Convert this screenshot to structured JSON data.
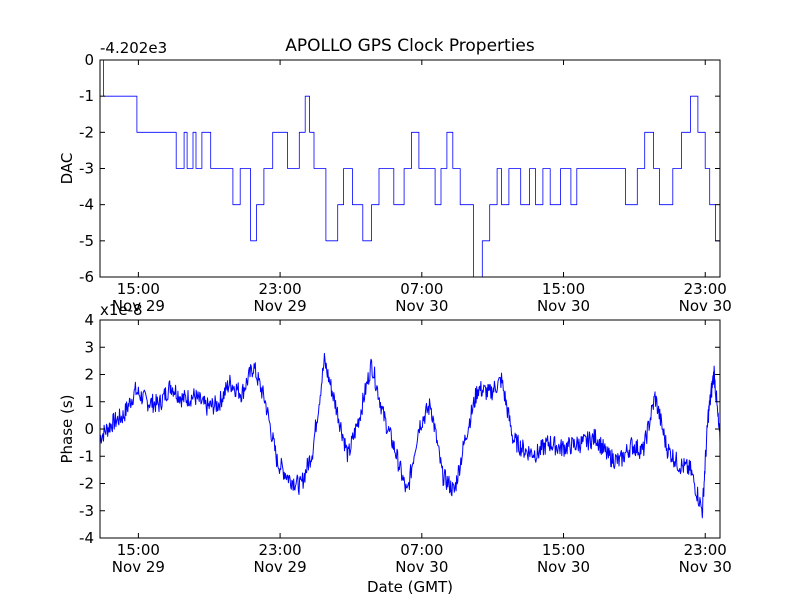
{
  "figure": {
    "title": "APOLLO GPS Clock Properties",
    "xlabel": "Date (GMT)"
  },
  "xticks": [
    {
      "time": "15:00",
      "date": "Nov 29"
    },
    {
      "time": "23:00",
      "date": "Nov 29"
    },
    {
      "time": "07:00",
      "date": "Nov 30"
    },
    {
      "time": "15:00",
      "date": "Nov 30"
    },
    {
      "time": "23:00",
      "date": "Nov 30"
    }
  ],
  "chart_data": [
    {
      "type": "line",
      "name": "dac_panel",
      "ylabel": "DAC",
      "offset_text": "-4.202e3",
      "ylim": [
        -6,
        0
      ],
      "yticks": [
        "0",
        "-1",
        "-2",
        "-3",
        "-4",
        "-5",
        "-6"
      ],
      "xlim": [
        "Nov 29 12:50",
        "Nov 30 23:50"
      ],
      "color": "#0000ff",
      "series": [
        {
          "x": [
            "Nov 29 12:50",
            "Nov 29 13:00",
            "Nov 29 13:02",
            "Nov 29 14:40",
            "Nov 29 14:55",
            "Nov 29 15:05",
            "Nov 29 16:50",
            "Nov 29 17:08",
            "Nov 29 17:35",
            "Nov 29 17:45",
            "Nov 29 18:05",
            "Nov 29 18:15",
            "Nov 29 18:35",
            "Nov 29 19:05",
            "Nov 29 19:25",
            "Nov 29 20:20",
            "Nov 29 20:45",
            "Nov 29 21:20",
            "Nov 29 21:40",
            "Nov 29 22:05",
            "Nov 29 22:35",
            "Nov 29 23:25",
            "Nov 30 00:05",
            "Nov 30 00:25",
            "Nov 30 00:40",
            "Nov 30 00:55",
            "Nov 30 01:35",
            "Nov 30 02:15",
            "Nov 30 02:35",
            "Nov 30 03:05",
            "Nov 30 03:40",
            "Nov 30 04:10",
            "Nov 30 04:35",
            "Nov 30 05:25",
            "Nov 30 06:00",
            "Nov 30 06:25",
            "Nov 30 06:50",
            "Nov 30 07:45",
            "Nov 30 08:05",
            "Nov 30 08:25",
            "Nov 30 08:45",
            "Nov 30 09:10",
            "Nov 30 09:55",
            "Nov 30 10:25",
            "Nov 30 10:50",
            "Nov 30 11:15",
            "Nov 30 11:30",
            "Nov 30 11:55",
            "Nov 30 12:35",
            "Nov 30 13:05",
            "Nov 30 13:25",
            "Nov 30 13:50",
            "Nov 30 14:15",
            "Nov 30 14:50",
            "Nov 30 15:25",
            "Nov 30 15:45",
            "Nov 30 17:50",
            "Nov 30 18:30",
            "Nov 30 19:10",
            "Nov 30 19:35",
            "Nov 30 20:05",
            "Nov 30 20:25",
            "Nov 30 21:10",
            "Nov 30 21:40",
            "Nov 30 22:10",
            "Nov 30 22:35",
            "Nov 30 23:00",
            "Nov 30 23:15",
            "Nov 30 23:35",
            "Nov 30 23:50"
          ],
          "y": [
            0,
            0,
            -1,
            -1,
            -2,
            -2,
            -2,
            -3,
            -2,
            -3,
            -2,
            -3,
            -2,
            -3,
            -3,
            -4,
            -3,
            -5,
            -4,
            -3,
            -2,
            -3,
            -2,
            -1,
            -2,
            -3,
            -5,
            -4,
            -3,
            -4,
            -5,
            -4,
            -3,
            -4,
            -3,
            -2,
            -3,
            -4,
            -3,
            -2,
            -3,
            -4,
            -6,
            -5,
            -4,
            -3,
            -4,
            -3,
            -4,
            -3,
            -4,
            -3,
            -4,
            -3,
            -4,
            -3,
            -3,
            -4,
            -3,
            -2,
            -3,
            -4,
            -3,
            -2,
            -1,
            -2,
            -3,
            -4,
            -5,
            -4
          ]
        }
      ]
    },
    {
      "type": "line",
      "name": "phase_panel",
      "ylabel": "Phase (s)",
      "offset_text": "x1e-8",
      "ylim": [
        -4,
        4
      ],
      "yticks": [
        "4",
        "3",
        "2",
        "1",
        "0",
        "-1",
        "-2",
        "-3",
        "-4"
      ],
      "xlim": [
        "Nov 29 12:50",
        "Nov 30 23:50"
      ],
      "color": "#0000ff",
      "series": [
        {
          "x": [
            "Nov 29 12:50",
            "Nov 29 13:30",
            "Nov 29 14:10",
            "Nov 29 14:50",
            "Nov 29 15:30",
            "Nov 29 16:10",
            "Nov 29 16:50",
            "Nov 29 17:30",
            "Nov 29 18:10",
            "Nov 29 18:50",
            "Nov 29 19:30",
            "Nov 29 20:10",
            "Nov 29 20:50",
            "Nov 29 21:30",
            "Nov 29 22:10",
            "Nov 29 22:50",
            "Nov 29 23:30",
            "Nov 30 00:10",
            "Nov 30 00:50",
            "Nov 30 01:30",
            "Nov 30 02:10",
            "Nov 30 02:50",
            "Nov 30 03:30",
            "Nov 30 04:10",
            "Nov 30 04:50",
            "Nov 30 05:30",
            "Nov 30 06:10",
            "Nov 30 06:50",
            "Nov 30 07:30",
            "Nov 30 08:10",
            "Nov 30 08:50",
            "Nov 30 09:30",
            "Nov 30 10:10",
            "Nov 30 10:50",
            "Nov 30 11:30",
            "Nov 30 12:10",
            "Nov 30 12:50",
            "Nov 30 13:30",
            "Nov 30 14:10",
            "Nov 30 14:50",
            "Nov 30 15:30",
            "Nov 30 16:10",
            "Nov 30 16:50",
            "Nov 30 17:30",
            "Nov 30 18:10",
            "Nov 30 18:50",
            "Nov 30 19:30",
            "Nov 30 20:10",
            "Nov 30 20:50",
            "Nov 30 21:30",
            "Nov 30 22:10",
            "Nov 30 22:50",
            "Nov 30 23:10",
            "Nov 30 23:30",
            "Nov 30 23:50"
          ],
          "y": [
            -0.3,
            0.2,
            0.5,
            1.4,
            1.0,
            0.9,
            1.6,
            1.1,
            1.2,
            0.8,
            0.9,
            1.7,
            1.3,
            2.3,
            1.0,
            -1.2,
            -1.8,
            -2.1,
            -0.8,
            2.5,
            0.8,
            -1.0,
            0.5,
            2.4,
            0.5,
            -0.8,
            -2.4,
            0.1,
            0.9,
            -1.7,
            -2.3,
            -0.2,
            1.5,
            1.3,
            1.8,
            -0.4,
            -0.8,
            -0.9,
            -0.5,
            -0.7,
            -0.6,
            -0.5,
            -0.3,
            -1.0,
            -1.2,
            -0.6,
            -0.8,
            1.2,
            -0.7,
            -1.3,
            -1.5,
            -3.0,
            0.5,
            2.1,
            -0.5
          ]
        }
      ]
    }
  ]
}
